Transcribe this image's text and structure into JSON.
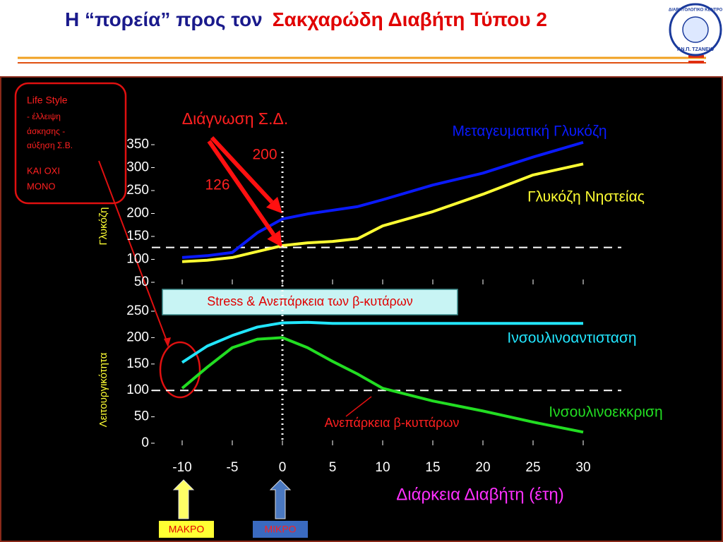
{
  "header": {
    "title": "Η “πορεία” προς τον",
    "title_highlight": "Σακχαρώδη Διαβήτη Τύπου 2",
    "logo_top": "ΔΙΑΒΗΤΟΛΟΓΙΚΟ ΚΕΝΤΡΟ",
    "logo_bottom": "Γ.Ν.Π. ΤΖΑΝΕΙΟ"
  },
  "notes": {
    "lifestyle_title": "Life Style",
    "lifestyle_lines": [
      "- έλλειψη",
      "άσκησης   -",
      "αύξηση Σ.Β."
    ],
    "lifestyle_extra": [
      "ΚΑΙ ΟΧΙ",
      "ΜΟΝΟ"
    ],
    "stress": "Stress & Ανεπάρκεια των β-κυτάρων",
    "macro": "ΜΑΚΡΟ",
    "micro": "ΜΙΚΡΟ"
  },
  "chart_data": [
    {
      "type": "line",
      "ylabel": "Γλυκόζη",
      "annotation": "Διάγνωση Σ.Δ.",
      "x": [
        -10,
        -7.5,
        -5,
        -2.5,
        0,
        2.5,
        5,
        7.5,
        10,
        15,
        20,
        25,
        30
      ],
      "xlim": [
        -10,
        30
      ],
      "xticks": [
        -10,
        -5,
        0,
        5,
        10,
        15,
        20,
        25,
        30
      ],
      "ylim": [
        50,
        350
      ],
      "yticks": [
        50,
        100,
        150,
        200,
        250,
        300,
        350
      ],
      "threshold": {
        "value": 126,
        "label": "126"
      },
      "diagnosis_x": 0,
      "diagnosis_marker": {
        "value": 200,
        "label": "200"
      },
      "series": [
        {
          "name": "Μεταγευματική Γλυκόζη",
          "color": "#0a1aff",
          "values": [
            104,
            108,
            115,
            158,
            188,
            199,
            207,
            215,
            230,
            262,
            288,
            323,
            355
          ]
        },
        {
          "name": "Γλυκόζη Νηστείας",
          "color": "#ffff33",
          "values": [
            95,
            98,
            104,
            117,
            130,
            136,
            139,
            145,
            173,
            204,
            242,
            284,
            308
          ]
        }
      ]
    },
    {
      "type": "line",
      "ylabel": "Λειτουργικότητα",
      "xlabel": "Διάρκεια Διαβήτη (έτη)",
      "annotation": "Ανεπάρκεια β-κυττάρων",
      "x": [
        -10,
        -7.5,
        -5,
        -2.5,
        0,
        2.5,
        5,
        7.5,
        10,
        15,
        20,
        25,
        30
      ],
      "xlim": [
        -10,
        30
      ],
      "xticks": [
        -10,
        -5,
        0,
        5,
        10,
        15,
        20,
        25,
        30
      ],
      "ylim": [
        0,
        250
      ],
      "yticks": [
        0,
        50,
        100,
        150,
        200,
        250
      ],
      "threshold": {
        "value": 100
      },
      "series": [
        {
          "name": "Ινσουλινοαντισταση",
          "color": "#22e6ff",
          "values": [
            153,
            184,
            204,
            220,
            228,
            229,
            227,
            227,
            227,
            227,
            227,
            227,
            227
          ]
        },
        {
          "name": "Ινσουλινοεκκριση",
          "color": "#22dd22",
          "values": [
            104,
            144,
            181,
            197,
            200,
            181,
            155,
            131,
            104,
            80,
            61,
            40,
            21
          ]
        }
      ]
    }
  ]
}
